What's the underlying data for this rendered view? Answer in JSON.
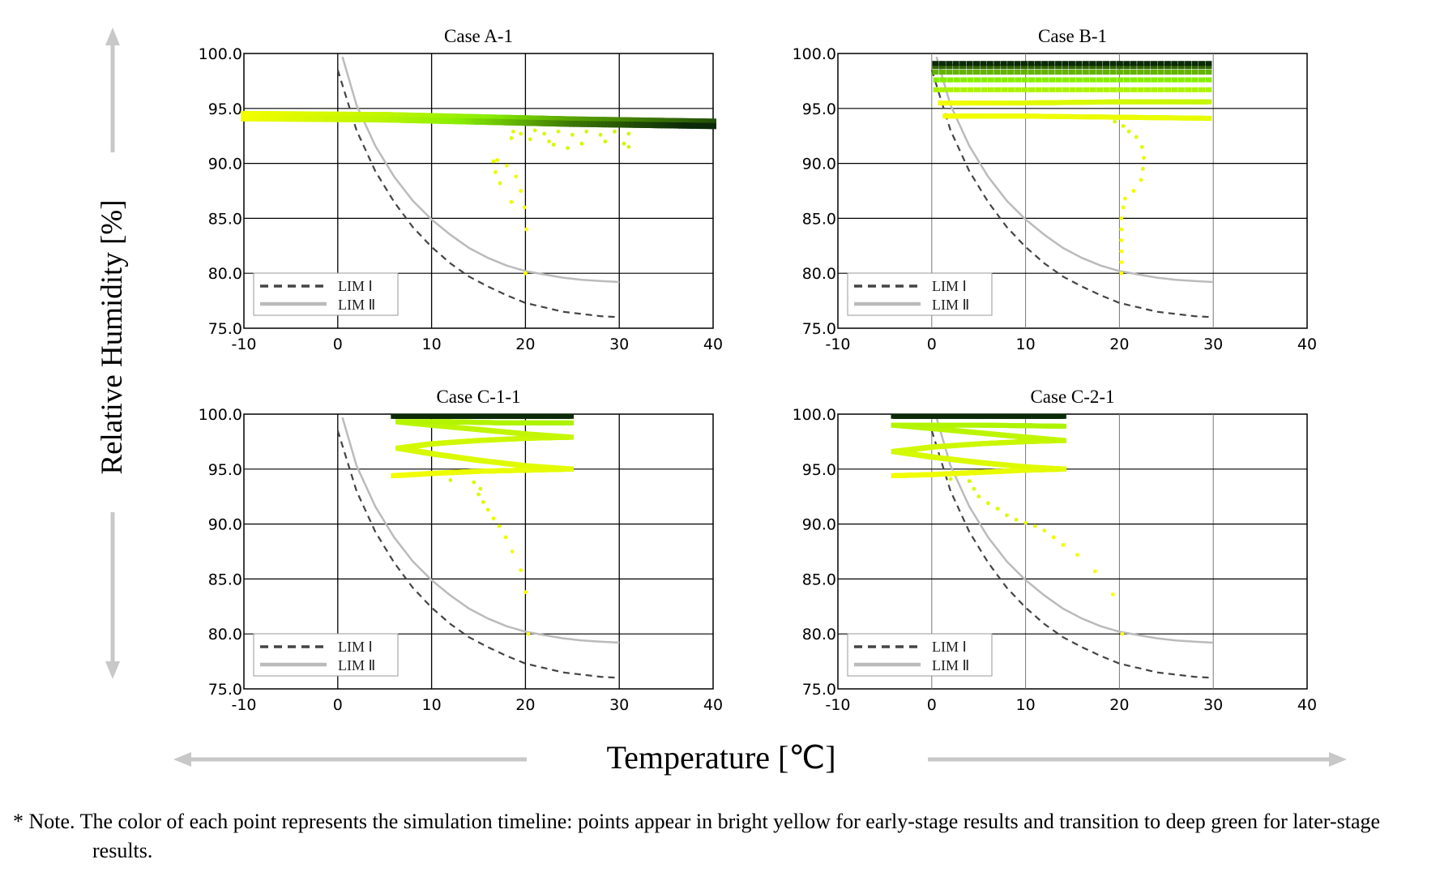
{
  "figure": {
    "y_axis_label": "Relative Humidity [%]",
    "x_axis_label": "Temperature [℃]",
    "note": "* Note. The color of each point represents the simulation timeline: points appear in bright yellow for early-stage results and transition to deep green for later-stage results.",
    "colors": {
      "early": "#ffff00",
      "mid": "#88ee00",
      "late": "#0b2a08",
      "lim1": "#444444",
      "lim2": "#bbbbbb"
    }
  },
  "chart_data": [
    {
      "type": "scatter",
      "title": "Case A-1",
      "xlim": [
        -10,
        40
      ],
      "ylim": [
        75,
        100
      ],
      "xticks": [
        "-10",
        "0",
        "10",
        "20",
        "30",
        "40"
      ],
      "yticks": [
        "75.0",
        "80.0",
        "85.0",
        "90.0",
        "95.0",
        "100.0"
      ],
      "legend": [
        "LIM Ⅰ",
        "LIM Ⅱ"
      ],
      "legend_position": "bottom-left",
      "series_points": [
        [
          20.0,
          80.0,
          0.0
        ],
        [
          20.1,
          84.0,
          0.02
        ],
        [
          19.9,
          86.0,
          0.04
        ],
        [
          19.5,
          87.5,
          0.05
        ],
        [
          19.0,
          88.8,
          0.06
        ],
        [
          18.0,
          89.8,
          0.07
        ],
        [
          17.0,
          90.3,
          0.08
        ],
        [
          16.6,
          90.2,
          0.09
        ],
        [
          16.8,
          89.2,
          0.1
        ],
        [
          17.3,
          88.2,
          0.1
        ],
        [
          18.5,
          86.5,
          0.1
        ],
        [
          18.7,
          92.9,
          0.12
        ],
        [
          19.5,
          92.7,
          0.13
        ],
        [
          21.0,
          93.0,
          0.14
        ],
        [
          22.0,
          92.7,
          0.15
        ],
        [
          23.5,
          92.9,
          0.16
        ],
        [
          25.0,
          92.6,
          0.17
        ],
        [
          26.5,
          92.9,
          0.18
        ],
        [
          28.0,
          92.6,
          0.19
        ],
        [
          29.5,
          92.9,
          0.2
        ],
        [
          31.0,
          92.7,
          0.21
        ],
        [
          18.5,
          92.3,
          0.14
        ],
        [
          20.5,
          92.2,
          0.15
        ],
        [
          22.5,
          92.0,
          0.16
        ],
        [
          23.0,
          91.7,
          0.17
        ],
        [
          26.0,
          91.8,
          0.18
        ],
        [
          28.5,
          92.0,
          0.19
        ],
        [
          30.5,
          91.8,
          0.2
        ],
        [
          31.0,
          91.5,
          0.2
        ],
        [
          24.5,
          91.4,
          0.18
        ]
      ],
      "series_bands": [
        [
          [
            -10.0,
            94.5
          ],
          [
            5.0,
            94.4
          ],
          [
            15.0,
            94.2
          ],
          [
            25.0,
            94.0
          ],
          [
            40.0,
            93.8
          ],
          0.85
        ],
        [
          [
            -10.0,
            94.1
          ],
          [
            5.0,
            94.0
          ],
          [
            15.0,
            93.8
          ],
          [
            25.0,
            93.6
          ],
          [
            40.0,
            93.4
          ],
          1.0
        ]
      ],
      "band_thickness": 0.55,
      "lim1": [
        [
          0,
          98.5
        ],
        [
          2,
          93.0
        ],
        [
          4,
          89.3
        ],
        [
          6,
          86.5
        ],
        [
          8,
          84.2
        ],
        [
          10,
          82.4
        ],
        [
          12,
          80.9
        ],
        [
          14,
          79.7
        ],
        [
          16,
          78.8
        ],
        [
          18,
          78.0
        ],
        [
          20,
          77.3
        ],
        [
          22,
          76.9
        ],
        [
          24,
          76.5
        ],
        [
          26,
          76.3
        ],
        [
          28,
          76.1
        ],
        [
          30,
          76.0
        ]
      ],
      "lim2": [
        [
          0.5,
          99.7
        ],
        [
          2,
          95.3
        ],
        [
          4,
          91.6
        ],
        [
          6,
          88.8
        ],
        [
          8,
          86.6
        ],
        [
          10,
          84.9
        ],
        [
          12,
          83.5
        ],
        [
          14,
          82.3
        ],
        [
          16,
          81.4
        ],
        [
          18,
          80.7
        ],
        [
          20,
          80.2
        ],
        [
          22,
          79.9
        ],
        [
          24,
          79.6
        ],
        [
          26,
          79.4
        ],
        [
          28,
          79.3
        ],
        [
          30,
          79.2
        ]
      ]
    },
    {
      "type": "scatter",
      "title": "Case B-1",
      "xlim": [
        -10,
        40
      ],
      "ylim": [
        75,
        100
      ],
      "xticks": [
        "-10",
        "0",
        "10",
        "20",
        "30",
        "40"
      ],
      "yticks": [
        "75.0",
        "80.0",
        "85.0",
        "90.0",
        "95.0",
        "100.0"
      ],
      "legend": [
        "LIM Ⅰ",
        "LIM Ⅱ"
      ],
      "legend_position": "bottom-left",
      "series_points": [
        [
          20.2,
          80.0,
          0.0
        ],
        [
          20.2,
          81.0,
          0.01
        ],
        [
          20.2,
          82.0,
          0.02
        ],
        [
          20.2,
          83.0,
          0.03
        ],
        [
          20.2,
          84.0,
          0.04
        ],
        [
          20.2,
          85.0,
          0.05
        ],
        [
          20.4,
          86.0,
          0.06
        ],
        [
          20.6,
          86.8,
          0.07
        ],
        [
          21.5,
          87.5,
          0.08
        ],
        [
          22.3,
          88.5,
          0.09
        ],
        [
          22.5,
          89.5,
          0.1
        ],
        [
          22.6,
          90.5,
          0.11
        ],
        [
          22.4,
          91.5,
          0.12
        ],
        [
          21.8,
          92.4,
          0.13
        ],
        [
          21.0,
          92.9,
          0.14
        ],
        [
          20.4,
          93.4,
          0.15
        ],
        [
          19.5,
          93.8,
          0.16
        ]
      ],
      "series_bands": [
        [
          [
            1.5,
            94.3
          ],
          [
            10.0,
            94.3
          ],
          [
            20.0,
            94.2
          ],
          [
            29.5,
            94.1
          ],
          0.05
        ],
        [
          [
            1.0,
            95.5
          ],
          [
            10.0,
            95.5
          ],
          [
            20.0,
            95.6
          ],
          [
            29.5,
            95.6
          ],
          0.2
        ],
        [
          [
            0.5,
            96.7
          ],
          [
            29.5,
            96.7
          ],
          0.35
        ],
        [
          [
            0.5,
            97.6
          ],
          [
            29.5,
            97.6
          ],
          0.5
        ],
        [
          [
            0.4,
            98.3
          ],
          [
            29.5,
            98.3
          ],
          0.65
        ],
        [
          [
            0.4,
            98.8
          ],
          [
            29.5,
            98.8
          ],
          0.85
        ],
        [
          [
            0.4,
            99.1
          ],
          [
            29.5,
            99.1
          ],
          1.0
        ]
      ],
      "band_thickness": 0.45,
      "lim1": [
        [
          0,
          98.5
        ],
        [
          2,
          93.0
        ],
        [
          4,
          89.3
        ],
        [
          6,
          86.5
        ],
        [
          8,
          84.2
        ],
        [
          10,
          82.4
        ],
        [
          12,
          80.9
        ],
        [
          14,
          79.7
        ],
        [
          16,
          78.8
        ],
        [
          18,
          78.0
        ],
        [
          20,
          77.3
        ],
        [
          22,
          76.9
        ],
        [
          24,
          76.5
        ],
        [
          26,
          76.3
        ],
        [
          28,
          76.1
        ],
        [
          30,
          76.0
        ]
      ],
      "lim2": [
        [
          0.5,
          99.7
        ],
        [
          2,
          95.3
        ],
        [
          4,
          91.6
        ],
        [
          6,
          88.8
        ],
        [
          8,
          86.6
        ],
        [
          10,
          84.9
        ],
        [
          12,
          83.5
        ],
        [
          14,
          82.3
        ],
        [
          16,
          81.4
        ],
        [
          18,
          80.7
        ],
        [
          20,
          80.2
        ],
        [
          22,
          79.9
        ],
        [
          24,
          79.6
        ],
        [
          26,
          79.4
        ],
        [
          28,
          79.3
        ],
        [
          30,
          79.2
        ]
      ]
    },
    {
      "type": "scatter",
      "title": "Case C-1-1",
      "xlim": [
        -10,
        40
      ],
      "ylim": [
        75,
        100
      ],
      "xticks": [
        "-10",
        "0",
        "10",
        "20",
        "30",
        "40"
      ],
      "yticks": [
        "75.0",
        "80.0",
        "85.0",
        "90.0",
        "95.0",
        "100.0"
      ],
      "legend": [
        "LIM Ⅰ",
        "LIM Ⅱ"
      ],
      "legend_position": "bottom-left",
      "series_points": [
        [
          20.3,
          80.0,
          0.0
        ],
        [
          20.0,
          83.8,
          0.02
        ],
        [
          19.5,
          85.8,
          0.04
        ],
        [
          18.6,
          87.5,
          0.06
        ],
        [
          17.9,
          88.8,
          0.08
        ],
        [
          17.2,
          89.8,
          0.1
        ],
        [
          16.6,
          90.5,
          0.11
        ],
        [
          16.0,
          91.3,
          0.12
        ],
        [
          15.5,
          92.0,
          0.13
        ],
        [
          15.0,
          92.7,
          0.14
        ],
        [
          15.2,
          93.2,
          0.15
        ],
        [
          14.5,
          93.8,
          0.16
        ],
        [
          12.0,
          94.0,
          0.17
        ]
      ],
      "series_bands": [
        [
          [
            6.0,
            94.4
          ],
          [
            10.0,
            94.6
          ],
          [
            15.0,
            94.8
          ],
          [
            20.0,
            94.9
          ],
          [
            24.8,
            95.0
          ],
          [
            20.0,
            95.3
          ],
          [
            15.0,
            95.8
          ],
          [
            10.0,
            96.4
          ],
          [
            6.5,
            96.9
          ],
          [
            10.0,
            97.3
          ],
          [
            15.0,
            97.6
          ],
          [
            20.0,
            97.8
          ],
          [
            24.8,
            97.9
          ],
          [
            20.0,
            98.2
          ],
          [
            15.0,
            98.6
          ],
          [
            10.0,
            99.0
          ],
          [
            6.5,
            99.3
          ],
          [
            12.0,
            99.3
          ],
          [
            18.0,
            99.2
          ],
          [
            24.8,
            99.2
          ],
          0.3
        ],
        [
          [
            6.0,
            99.8
          ],
          [
            15.0,
            99.8
          ],
          [
            24.8,
            99.8
          ],
          1.0
        ]
      ],
      "band_thickness": 0.45,
      "lim1": [
        [
          0,
          98.5
        ],
        [
          2,
          93.0
        ],
        [
          4,
          89.3
        ],
        [
          6,
          86.5
        ],
        [
          8,
          84.2
        ],
        [
          10,
          82.4
        ],
        [
          12,
          80.9
        ],
        [
          14,
          79.7
        ],
        [
          16,
          78.8
        ],
        [
          18,
          78.0
        ],
        [
          20,
          77.3
        ],
        [
          22,
          76.9
        ],
        [
          24,
          76.5
        ],
        [
          26,
          76.3
        ],
        [
          28,
          76.1
        ],
        [
          30,
          76.0
        ]
      ],
      "lim2": [
        [
          0.5,
          99.7
        ],
        [
          2,
          95.3
        ],
        [
          4,
          91.6
        ],
        [
          6,
          88.8
        ],
        [
          8,
          86.6
        ],
        [
          10,
          84.9
        ],
        [
          12,
          83.5
        ],
        [
          14,
          82.3
        ],
        [
          16,
          81.4
        ],
        [
          18,
          80.7
        ],
        [
          20,
          80.2
        ],
        [
          22,
          79.9
        ],
        [
          24,
          79.6
        ],
        [
          26,
          79.4
        ],
        [
          28,
          79.3
        ],
        [
          30,
          79.2
        ]
      ]
    },
    {
      "type": "scatter",
      "title": "Case C-2-1",
      "xlim": [
        -10,
        40
      ],
      "ylim": [
        75,
        100
      ],
      "xticks": [
        "-10",
        "0",
        "10",
        "20",
        "30",
        "40"
      ],
      "yticks": [
        "75.0",
        "80.0",
        "85.0",
        "90.0",
        "95.0",
        "100.0"
      ],
      "legend": [
        "LIM Ⅰ",
        "LIM Ⅱ"
      ],
      "legend_position": "bottom-left",
      "series_points": [
        [
          20.3,
          80.0,
          0.0
        ],
        [
          19.3,
          83.6,
          0.02
        ],
        [
          17.4,
          85.7,
          0.04
        ],
        [
          15.5,
          87.2,
          0.06
        ],
        [
          14.0,
          88.1,
          0.07
        ],
        [
          13.0,
          88.8,
          0.08
        ],
        [
          12.0,
          89.4,
          0.09
        ],
        [
          11.0,
          89.8,
          0.1
        ],
        [
          10.0,
          90.1,
          0.11
        ],
        [
          9.0,
          90.4,
          0.12
        ],
        [
          8.0,
          90.8,
          0.13
        ],
        [
          7.0,
          91.4,
          0.14
        ],
        [
          6.0,
          91.9,
          0.15
        ],
        [
          5.0,
          92.5,
          0.16
        ],
        [
          4.5,
          93.2,
          0.17
        ],
        [
          4.0,
          93.9,
          0.18
        ],
        [
          2.0,
          94.1,
          0.19
        ]
      ],
      "series_bands": [
        [
          [
            -4.0,
            94.4
          ],
          [
            0.0,
            94.5
          ],
          [
            5.0,
            94.7
          ],
          [
            10.0,
            94.9
          ],
          [
            14.0,
            95.0
          ],
          [
            10.0,
            95.2
          ],
          [
            5.0,
            95.6
          ],
          [
            0.0,
            96.1
          ],
          [
            -4.0,
            96.6
          ],
          [
            0.0,
            97.0
          ],
          [
            5.0,
            97.3
          ],
          [
            10.0,
            97.5
          ],
          [
            14.0,
            97.6
          ],
          [
            10.0,
            97.9
          ],
          [
            5.0,
            98.3
          ],
          [
            0.0,
            98.7
          ],
          [
            -4.0,
            99.0
          ],
          [
            5.0,
            99.0
          ],
          [
            14.0,
            98.9
          ],
          0.3
        ],
        [
          [
            -4.0,
            99.8
          ],
          [
            5.0,
            99.8
          ],
          [
            14.0,
            99.8
          ],
          1.0
        ]
      ],
      "band_thickness": 0.45,
      "lim1": [
        [
          0,
          98.5
        ],
        [
          2,
          93.0
        ],
        [
          4,
          89.3
        ],
        [
          6,
          86.5
        ],
        [
          8,
          84.2
        ],
        [
          10,
          82.4
        ],
        [
          12,
          80.9
        ],
        [
          14,
          79.7
        ],
        [
          16,
          78.8
        ],
        [
          18,
          78.0
        ],
        [
          20,
          77.3
        ],
        [
          22,
          76.9
        ],
        [
          24,
          76.5
        ],
        [
          26,
          76.3
        ],
        [
          28,
          76.1
        ],
        [
          30,
          76.0
        ]
      ],
      "lim2": [
        [
          0.5,
          99.7
        ],
        [
          2,
          95.3
        ],
        [
          4,
          91.6
        ],
        [
          6,
          88.8
        ],
        [
          8,
          86.6
        ],
        [
          10,
          84.9
        ],
        [
          12,
          83.5
        ],
        [
          14,
          82.3
        ],
        [
          16,
          81.4
        ],
        [
          18,
          80.7
        ],
        [
          20,
          80.2
        ],
        [
          22,
          79.9
        ],
        [
          24,
          79.6
        ],
        [
          26,
          79.4
        ],
        [
          28,
          79.3
        ],
        [
          30,
          79.2
        ]
      ]
    }
  ]
}
